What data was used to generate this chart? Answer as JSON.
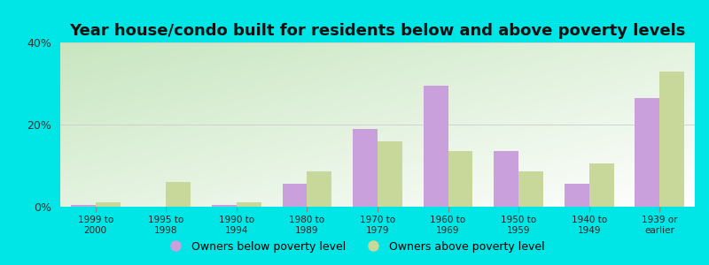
{
  "title": "Year house/condo built for residents below and above poverty levels",
  "categories": [
    "1999 to\n2000",
    "1995 to\n1998",
    "1990 to\n1994",
    "1980 to\n1989",
    "1970 to\n1979",
    "1960 to\n1969",
    "1950 to\n1959",
    "1940 to\n1949",
    "1939 or\nearlier"
  ],
  "below_poverty": [
    0.5,
    0.0,
    0.5,
    5.5,
    19.0,
    29.5,
    13.5,
    5.5,
    26.5
  ],
  "above_poverty": [
    1.0,
    6.0,
    1.0,
    8.5,
    16.0,
    13.5,
    8.5,
    10.5,
    33.0
  ],
  "below_color": "#c9a0dc",
  "above_color": "#c8d89a",
  "ylim": [
    0,
    40
  ],
  "yticks": [
    0,
    20,
    40
  ],
  "ytick_labels": [
    "0%",
    "20%",
    "40%"
  ],
  "outer_bg": "#00e5e5",
  "grad_top": "#c8e6c0",
  "grad_bottom": "#f0fff8",
  "bar_width": 0.35,
  "title_fontsize": 13,
  "legend_below_label": "Owners below poverty level",
  "legend_above_label": "Owners above poverty level"
}
